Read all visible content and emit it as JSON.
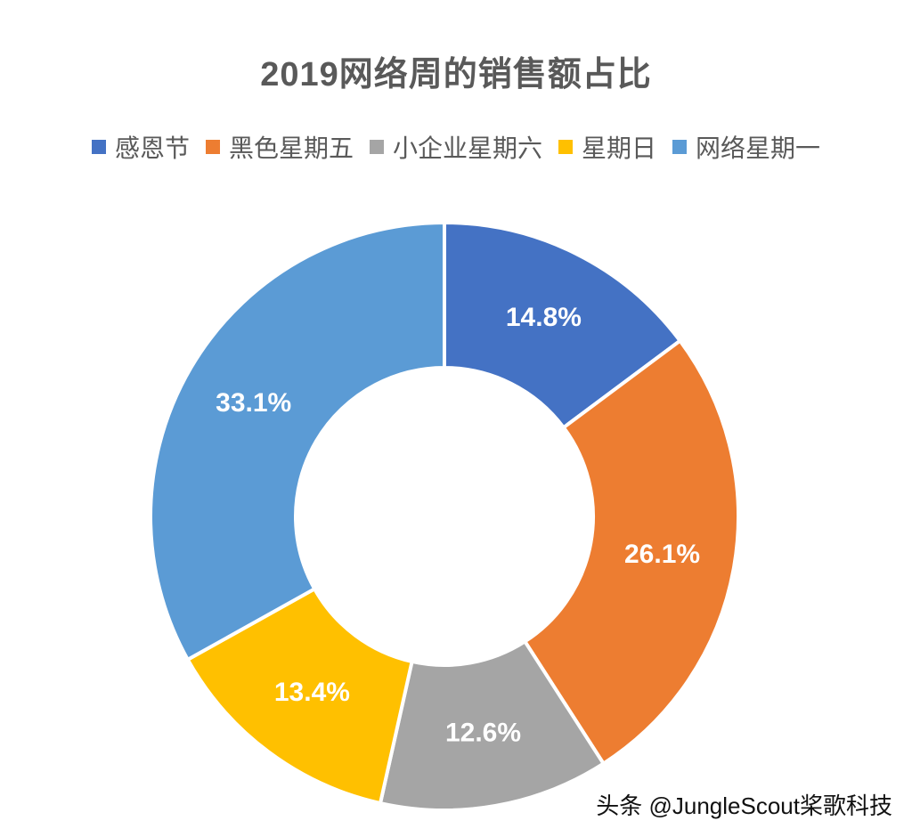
{
  "chart_data": {
    "type": "pie",
    "title": "2019网络周的销售额占比",
    "legend_position": "top",
    "donut": true,
    "categories": [
      "感恩节",
      "黑色星期五",
      "小企业星期六",
      "星期日",
      "网络星期一"
    ],
    "values": [
      14.8,
      26.1,
      12.6,
      13.4,
      33.1
    ],
    "value_labels": [
      "14.8%",
      "26.1%",
      "12.6%",
      "13.4%",
      "33.1%"
    ],
    "colors": [
      "#4472C4",
      "#ED7D31",
      "#A5A5A5",
      "#FFC000",
      "#5B9BD5"
    ]
  },
  "watermark": "头条 @JungleScout桨歌科技"
}
